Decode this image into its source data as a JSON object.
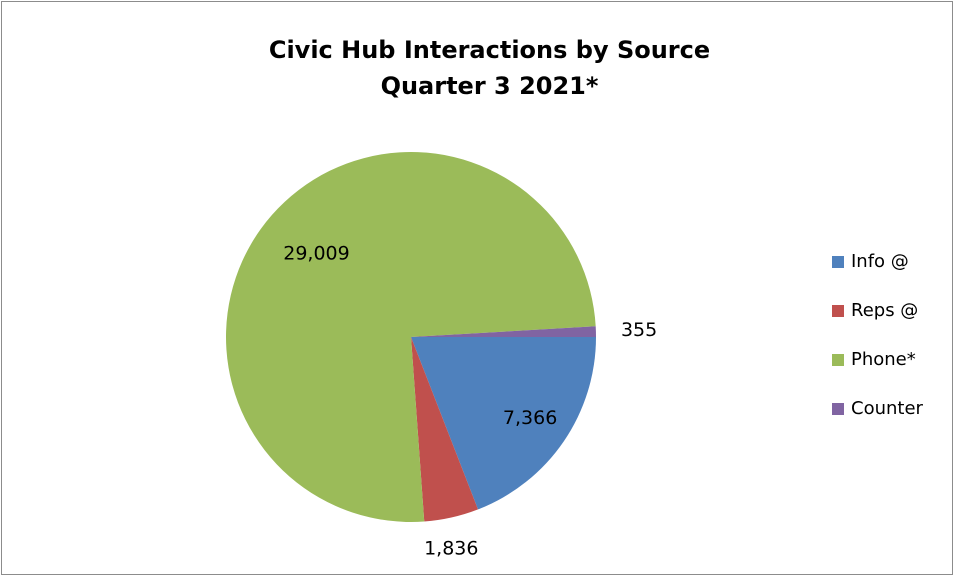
{
  "chart_data": {
    "type": "pie",
    "title": "Civic Hub Interactions by Source",
    "subtitle": "Quarter 3 2021*",
    "categories": [
      "Info @",
      "Reps @",
      "Phone*",
      "Counter"
    ],
    "values": [
      7366,
      1836,
      29009,
      355
    ],
    "value_labels": [
      "7,366",
      "1,836",
      "29,009",
      "355"
    ],
    "colors": [
      "#4f81bd",
      "#c0504d",
      "#9bbb59",
      "#8064a2"
    ],
    "legend_position": "right",
    "start_angle": "3 o'clock, clockwise"
  }
}
